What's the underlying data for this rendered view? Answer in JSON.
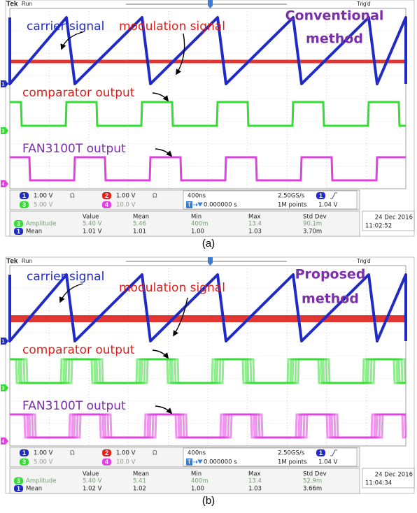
{
  "panels": [
    {
      "status": {
        "brand": "Tek",
        "state": "Run",
        "trigger": "Trig'd"
      },
      "method": [
        "Conventional",
        "method"
      ],
      "labels": {
        "carrier": "carrier signal",
        "modulation": "modulation signal",
        "comparator": "comparator output",
        "driver": "FAN3100T output"
      },
      "markers": [
        "1",
        "3",
        "4"
      ],
      "channels": [
        {
          "id": "1",
          "scale": "1.00 V",
          "impedance": "Ω"
        },
        {
          "id": "2",
          "scale": "1.00 V",
          "impedance": "Ω"
        },
        {
          "id": "3",
          "scale": "5.00 V"
        },
        {
          "id": "4",
          "scale": "10.0 V"
        }
      ],
      "timebase": {
        "scale": "400ns",
        "trigger_tag": "T",
        "position": "0.000000 s",
        "rate": "2.50GS/s",
        "length": "1M points",
        "trigger_channel": "1",
        "trigger_level": "1.04 V"
      },
      "measurements": {
        "columns": [
          "Value",
          "Mean",
          "Min",
          "Max",
          "Std Dev"
        ],
        "rows": [
          {
            "channel": "3",
            "name": "Amplitude",
            "cells": [
              "5.40 V",
              "5.46",
              "400m",
              "13.4",
              "90.1m"
            ]
          },
          {
            "channel": "1",
            "name": "Mean",
            "cells": [
              "1.01 V",
              "1.01",
              "1.00",
              "1.03",
              "3.70m"
            ]
          }
        ]
      },
      "date": "24 Dec 2016",
      "time": "11:02:52",
      "caption": "(a)"
    },
    {
      "status": {
        "brand": "Tek",
        "state": "Run",
        "trigger": "Trig'd"
      },
      "method": [
        "Proposed",
        "method"
      ],
      "labels": {
        "carrier": "carrier signal",
        "modulation": "modulation signal",
        "comparator": "comparator output",
        "driver": "FAN3100T output"
      },
      "markers": [
        "1",
        "3",
        "4"
      ],
      "channels": [
        {
          "id": "1",
          "scale": "1.00 V",
          "impedance": "Ω"
        },
        {
          "id": "2",
          "scale": "1.00 V",
          "impedance": "Ω"
        },
        {
          "id": "3",
          "scale": "5.00 V"
        },
        {
          "id": "4",
          "scale": "10.0 V"
        }
      ],
      "timebase": {
        "scale": "400ns",
        "trigger_tag": "T",
        "position": "0.000000 s",
        "rate": "2.50GS/s",
        "length": "1M points",
        "trigger_channel": "1",
        "trigger_level": "1.04 V"
      },
      "measurements": {
        "columns": [
          "Value",
          "Mean",
          "Min",
          "Max",
          "Std Dev"
        ],
        "rows": [
          {
            "channel": "3",
            "name": "Amplitude",
            "cells": [
              "5.40 V",
              "5.41",
              "400m",
              "13.4",
              "52.9m"
            ]
          },
          {
            "channel": "1",
            "name": "Mean",
            "cells": [
              "1.02 V",
              "1.02",
              "1.00",
              "1.03",
              "3.66m"
            ]
          }
        ]
      },
      "date": "24 Dec 2016",
      "time": "11:04:34",
      "caption": "(b)"
    }
  ]
}
